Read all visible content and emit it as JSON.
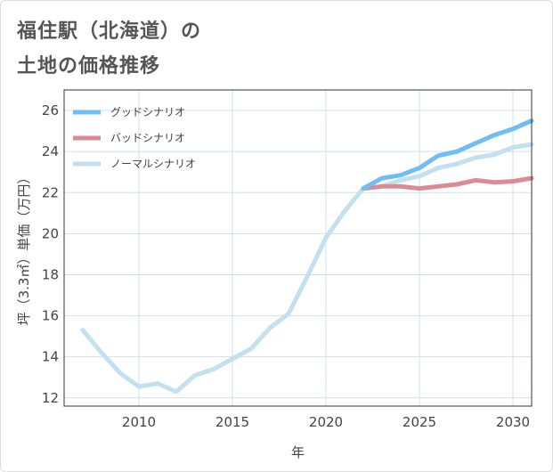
{
  "title": "福住駅（北海道）の",
  "subtitle": "土地の価格推移",
  "colors": {
    "good": "#6ebdf4",
    "bad": "#dd8b92",
    "normal": "#c3e0ee",
    "grid": "#cfe0ec",
    "frame": "#333333"
  },
  "chart_data": {
    "type": "line",
    "xlabel": "年",
    "ylabel": "坪（3.3㎡）単価（万円）",
    "xlim": [
      2006,
      2031
    ],
    "ylim": [
      11.6,
      27
    ],
    "xticks": [
      2010,
      2015,
      2020,
      2025,
      2030
    ],
    "yticks": [
      12,
      14,
      16,
      18,
      20,
      22,
      24,
      26
    ],
    "grid": true,
    "legend_position": "top-left",
    "series": [
      {
        "name": "グッドシナリオ",
        "color_key": "good",
        "x": [
          2022,
          2023,
          2024,
          2025,
          2026,
          2027,
          2028,
          2029,
          2030,
          2031
        ],
        "y": [
          22.2,
          22.7,
          22.85,
          23.2,
          23.8,
          24.0,
          24.4,
          24.8,
          25.1,
          25.5
        ]
      },
      {
        "name": "バッドシナリオ",
        "color_key": "bad",
        "x": [
          2022,
          2023,
          2024,
          2025,
          2026,
          2027,
          2028,
          2029,
          2030,
          2031
        ],
        "y": [
          22.2,
          22.3,
          22.3,
          22.2,
          22.3,
          22.4,
          22.6,
          22.5,
          22.55,
          22.7
        ]
      },
      {
        "name": "ノーマルシナリオ",
        "color_key": "normal",
        "x": [
          2007,
          2008,
          2009,
          2010,
          2011,
          2012,
          2013,
          2014,
          2015,
          2016,
          2017,
          2018,
          2019,
          2020,
          2021,
          2022,
          2023,
          2024,
          2025,
          2026,
          2027,
          2028,
          2029,
          2030,
          2031
        ],
        "y": [
          15.3,
          14.2,
          13.2,
          12.55,
          12.7,
          12.3,
          13.1,
          13.4,
          13.9,
          14.4,
          15.4,
          16.1,
          17.9,
          19.8,
          21.1,
          22.2,
          22.3,
          22.6,
          22.8,
          23.2,
          23.4,
          23.7,
          23.85,
          24.2,
          24.35
        ]
      }
    ]
  }
}
